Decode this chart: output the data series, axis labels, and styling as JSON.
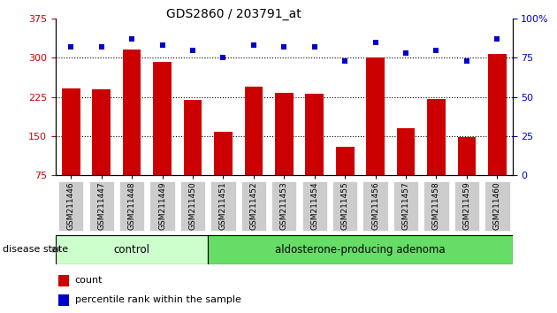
{
  "title": "GDS2860 / 203791_at",
  "categories": [
    "GSM211446",
    "GSM211447",
    "GSM211448",
    "GSM211449",
    "GSM211450",
    "GSM211451",
    "GSM211452",
    "GSM211453",
    "GSM211454",
    "GSM211455",
    "GSM211456",
    "GSM211457",
    "GSM211458",
    "GSM211459",
    "GSM211460"
  ],
  "counts": [
    242,
    240,
    316,
    292,
    220,
    158,
    245,
    233,
    232,
    130,
    300,
    165,
    222,
    148,
    308
  ],
  "percentiles": [
    82,
    82,
    87,
    83,
    80,
    75,
    83,
    82,
    82,
    73,
    85,
    78,
    80,
    73,
    87
  ],
  "bar_color": "#cc0000",
  "dot_color": "#0000cc",
  "ylim_left": [
    75,
    375
  ],
  "ylim_right": [
    0,
    100
  ],
  "yticks_left": [
    75,
    150,
    225,
    300,
    375
  ],
  "yticks_right": [
    0,
    25,
    50,
    75,
    100
  ],
  "grid_values": [
    150,
    225,
    300
  ],
  "control_count": 5,
  "control_label": "control",
  "adenoma_label": "aldosterone-producing adenoma",
  "disease_state_label": "disease state",
  "legend_count_label": "count",
  "legend_percentile_label": "percentile rank within the sample",
  "bar_color_legend": "#cc0000",
  "dot_color_legend": "#0000cc",
  "bar_width": 0.6,
  "control_bg": "#ccffcc",
  "adenoma_bg": "#66dd66",
  "tick_label_bg": "#cccccc"
}
